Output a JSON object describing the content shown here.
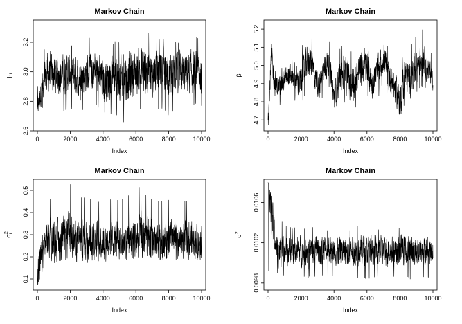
{
  "panels": [
    {
      "title": "Markov Chain",
      "xlabel": "Index",
      "ylabel": "μ",
      "ylabel_sub": "t",
      "ylabel_sup": "",
      "xticks": [
        "0",
        "2000",
        "4000",
        "6000",
        "8000",
        "10000"
      ],
      "yticks": [
        "2.6",
        "2.8",
        "3.0",
        "3.2"
      ]
    },
    {
      "title": "Markov Chain",
      "xlabel": "Index",
      "ylabel": "β",
      "ylabel_sub": "",
      "ylabel_sup": "",
      "xticks": [
        "0",
        "2000",
        "4000",
        "6000",
        "8000",
        "10000"
      ],
      "yticks": [
        "4.7",
        "4.8",
        "4.9",
        "5.0",
        "5.1",
        "5.2"
      ]
    },
    {
      "title": "Markov Chain",
      "xlabel": "Index",
      "ylabel": "σ",
      "ylabel_sub": "t",
      "ylabel_sup": "2",
      "xticks": [
        "0",
        "2000",
        "4000",
        "6000",
        "8000",
        "10000"
      ],
      "yticks": [
        "0.1",
        "0.2",
        "0.3",
        "0.4",
        "0.5"
      ]
    },
    {
      "title": "Markov Chain",
      "xlabel": "Index",
      "ylabel": "σ",
      "ylabel_sub": "",
      "ylabel_sup": "2",
      "xticks": [
        "0",
        "2000",
        "4000",
        "6000",
        "8000",
        "10000"
      ],
      "yticks": [
        "0.0098",
        "0.0102",
        "0.0106"
      ]
    }
  ],
  "chart_data": [
    {
      "type": "line",
      "title": "Markov Chain",
      "xlabel": "Index",
      "ylabel": "μt",
      "xlim": [
        0,
        10000
      ],
      "ylim": [
        2.6,
        3.35
      ],
      "grid": false,
      "series": [
        {
          "x": [
            0,
            500,
            1000,
            1500,
            2000,
            2500,
            3000,
            3500,
            4000,
            4500,
            5000,
            5500,
            6000,
            6500,
            7000,
            7500,
            8000,
            8500,
            9000,
            9500,
            10000
          ],
          "values": [
            2.75,
            3.0,
            2.98,
            2.97,
            3.0,
            2.96,
            2.99,
            3.01,
            2.94,
            2.96,
            2.95,
            2.97,
            2.99,
            3.01,
            2.98,
            3.0,
            2.97,
            3.0,
            2.99,
            3.0,
            2.98
          ],
          "upper": [
            2.9,
            3.22,
            3.2,
            3.18,
            3.2,
            3.18,
            3.22,
            3.32,
            3.18,
            3.2,
            3.22,
            3.2,
            3.25,
            3.35,
            3.22,
            3.24,
            3.2,
            3.22,
            3.2,
            3.26,
            3.24
          ],
          "lower": [
            2.72,
            2.76,
            2.74,
            2.72,
            2.75,
            2.72,
            2.76,
            2.78,
            2.72,
            2.7,
            2.7,
            2.6,
            2.74,
            2.72,
            2.72,
            2.74,
            2.7,
            2.72,
            2.74,
            2.76,
            2.76
          ]
        }
      ]
    },
    {
      "type": "line",
      "title": "Markov Chain",
      "xlabel": "Index",
      "ylabel": "β",
      "xlim": [
        0,
        10000
      ],
      "ylim": [
        4.64,
        5.25
      ],
      "grid": false,
      "series": [
        {
          "x": [
            0,
            200,
            400,
            700,
            1000,
            1300,
            1600,
            2000,
            2300,
            2500,
            2800,
            3100,
            3400,
            3700,
            4000,
            4300,
            4600,
            5000,
            5300,
            5600,
            6000,
            6300,
            6600,
            7000,
            7300,
            7600,
            8000,
            8300,
            8600,
            9000,
            9300,
            9600,
            10000
          ],
          "values": [
            4.7,
            5.05,
            4.9,
            4.88,
            4.92,
            4.95,
            4.93,
            4.9,
            5.0,
            5.05,
            4.95,
            4.88,
            4.98,
            5.02,
            4.82,
            4.92,
            4.96,
            4.9,
            4.92,
            4.98,
            5.0,
            4.9,
            4.95,
            5.05,
            4.95,
            4.9,
            4.8,
            4.95,
            4.92,
            5.0,
            5.05,
            5.0,
            4.93
          ],
          "upper": [
            4.8,
            5.22,
            5.05,
            4.98,
            5.0,
            5.05,
            5.02,
            5.1,
            5.18,
            5.24,
            5.08,
            5.0,
            5.12,
            5.16,
            5.0,
            5.1,
            5.12,
            5.08,
            5.1,
            5.15,
            5.2,
            5.05,
            5.1,
            5.2,
            5.1,
            5.05,
            4.95,
            5.15,
            5.1,
            5.18,
            5.22,
            5.12,
            5.05
          ],
          "lower": [
            4.65,
            4.92,
            4.8,
            4.78,
            4.8,
            4.82,
            4.8,
            4.78,
            4.85,
            4.9,
            4.82,
            4.76,
            4.85,
            4.88,
            4.72,
            4.78,
            4.8,
            4.7,
            4.76,
            4.82,
            4.84,
            4.75,
            4.8,
            4.9,
            4.8,
            4.76,
            4.64,
            4.8,
            4.78,
            4.84,
            4.88,
            4.86,
            4.84
          ]
        }
      ]
    },
    {
      "type": "line",
      "title": "Markov Chain",
      "xlabel": "Index",
      "ylabel": "σt²",
      "xlim": [
        0,
        10000
      ],
      "ylim": [
        0.05,
        0.55
      ],
      "grid": false,
      "series": [
        {
          "x": [
            0,
            500,
            1000,
            1500,
            2000,
            2500,
            3000,
            3500,
            4000,
            4500,
            5000,
            5500,
            6000,
            6500,
            7000,
            7500,
            8000,
            8500,
            9000,
            9500,
            10000
          ],
          "values": [
            0.1,
            0.28,
            0.27,
            0.28,
            0.29,
            0.27,
            0.28,
            0.28,
            0.27,
            0.28,
            0.27,
            0.28,
            0.28,
            0.29,
            0.27,
            0.28,
            0.28,
            0.27,
            0.28,
            0.28,
            0.27
          ],
          "upper": [
            0.44,
            0.45,
            0.47,
            0.48,
            0.54,
            0.47,
            0.48,
            0.46,
            0.45,
            0.47,
            0.46,
            0.48,
            0.54,
            0.5,
            0.47,
            0.46,
            0.47,
            0.45,
            0.46,
            0.46,
            0.42
          ],
          "lower": [
            0.07,
            0.18,
            0.17,
            0.18,
            0.17,
            0.18,
            0.17,
            0.18,
            0.17,
            0.18,
            0.17,
            0.18,
            0.17,
            0.18,
            0.17,
            0.18,
            0.17,
            0.18,
            0.17,
            0.18,
            0.18
          ]
        }
      ]
    },
    {
      "type": "line",
      "title": "Markov Chain",
      "xlabel": "Index",
      "ylabel": "σ²",
      "xlim": [
        0,
        10000
      ],
      "ylim": [
        0.00973,
        0.01083
      ],
      "grid": false,
      "series": [
        {
          "x": [
            0,
            500,
            1000,
            1500,
            2000,
            2500,
            3000,
            3500,
            4000,
            4500,
            5000,
            5500,
            6000,
            6500,
            7000,
            7500,
            8000,
            8500,
            9000,
            9500,
            10000
          ],
          "values": [
            0.0108,
            0.01013,
            0.01012,
            0.01013,
            0.01012,
            0.01013,
            0.01012,
            0.01013,
            0.01012,
            0.01012,
            0.01012,
            0.01013,
            0.01012,
            0.01013,
            0.01012,
            0.01012,
            0.01012,
            0.01013,
            0.01012,
            0.01012,
            0.01012
          ],
          "upper": [
            0.0108,
            0.01045,
            0.0104,
            0.01035,
            0.01036,
            0.01035,
            0.01038,
            0.01034,
            0.01035,
            0.01036,
            0.01034,
            0.01038,
            0.01035,
            0.01036,
            0.01035,
            0.01034,
            0.01035,
            0.01036,
            0.01035,
            0.01038,
            0.01036
          ],
          "lower": [
            0.0099,
            0.00988,
            0.00986,
            0.00988,
            0.00985,
            0.00984,
            0.00987,
            0.00985,
            0.00986,
            0.00984,
            0.00983,
            0.00985,
            0.00984,
            0.00986,
            0.00984,
            0.00985,
            0.00982,
            0.00984,
            0.00983,
            0.00985,
            0.00986
          ]
        }
      ]
    }
  ]
}
